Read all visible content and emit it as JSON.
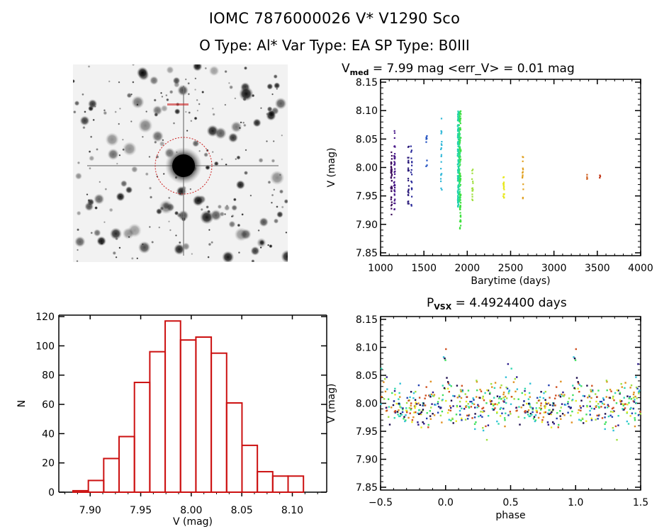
{
  "header": {
    "title": "IOMC 7876000026    V* V1290 Sco",
    "subtitle": "O Type: Al*  Var Type: EA  SP Type: B0III"
  },
  "sky_image": {
    "description": "DSS sky field with target circled in red",
    "marker_color": "#cc2222"
  },
  "chart_data": [
    {
      "type": "scatter",
      "name": "light-curve",
      "title_prefix": "V",
      "title_sub": "med",
      "title_rest": " = 7.99 mag <err_V> = 0.01 mag",
      "xlabel": "Barytime (days)",
      "ylabel": "V (mag)",
      "xlim": [
        1000,
        4000
      ],
      "ylim": [
        8.155,
        7.845
      ],
      "xticks": [
        "1000",
        "1500",
        "2000",
        "2500",
        "3000",
        "3500",
        "4000"
      ],
      "yticks": [
        "7.85",
        "7.90",
        "7.95",
        "8.00",
        "8.05",
        "8.10",
        "8.15"
      ],
      "clusters": [
        {
          "x": 1125,
          "color": "#3a0a5a",
          "ymin": 7.915,
          "ymax": 8.03,
          "n": 40
        },
        {
          "x": 1160,
          "color": "#4a1a8a",
          "ymin": 7.925,
          "ymax": 8.065,
          "n": 40
        },
        {
          "x": 1320,
          "color": "#2a1a7a",
          "ymin": 7.925,
          "ymax": 8.045,
          "n": 25
        },
        {
          "x": 1355,
          "color": "#2a2a9a",
          "ymin": 7.93,
          "ymax": 8.04,
          "n": 18
        },
        {
          "x": 1530,
          "color": "#2050c0",
          "ymin": 7.985,
          "ymax": 8.07,
          "n": 8
        },
        {
          "x": 1700,
          "color": "#30b8d8",
          "ymin": 7.955,
          "ymax": 8.09,
          "n": 20
        },
        {
          "x": 1895,
          "color": "#20d0b0",
          "ymin": 7.93,
          "ymax": 8.1,
          "n": 120
        },
        {
          "x": 1910,
          "color": "#30e080",
          "ymin": 7.94,
          "ymax": 8.1,
          "n": 120
        },
        {
          "x": 1920,
          "color": "#40e040",
          "ymin": 7.89,
          "ymax": 8.1,
          "n": 60
        },
        {
          "x": 2060,
          "color": "#a0e040",
          "ymin": 7.905,
          "ymax": 8.0,
          "n": 15
        },
        {
          "x": 2420,
          "color": "#e8e820",
          "ymin": 7.945,
          "ymax": 7.985,
          "n": 20
        },
        {
          "x": 2640,
          "color": "#e0a020",
          "ymin": 7.945,
          "ymax": 8.025,
          "n": 14
        },
        {
          "x": 3380,
          "color": "#d06020",
          "ymin": 7.975,
          "ymax": 7.99,
          "n": 4
        },
        {
          "x": 3530,
          "color": "#c03010",
          "ymin": 7.98,
          "ymax": 7.988,
          "n": 3
        }
      ]
    },
    {
      "type": "bar",
      "name": "histogram",
      "xlabel": "V (mag)",
      "ylabel": "N",
      "xlim": [
        7.869,
        8.134
      ],
      "ylim": [
        0,
        121
      ],
      "xticks": [
        "7.90",
        "7.95",
        "8.00",
        "8.05",
        "8.10"
      ],
      "yticks": [
        "0",
        "20",
        "40",
        "60",
        "80",
        "100",
        "120"
      ],
      "bin_start": 7.883,
      "bin_width": 0.0152,
      "values": [
        1,
        8,
        23,
        38,
        75,
        96,
        117,
        104,
        106,
        95,
        61,
        32,
        14,
        11,
        11
      ],
      "color": "#cc1111"
    },
    {
      "type": "scatter",
      "name": "phased-curve",
      "title_prefix": "P",
      "title_sub": "VSX",
      "title_rest": " = 4.4924400 days",
      "xlabel": "phase",
      "ylabel": "V (mag)",
      "xlim": [
        -0.5,
        1.5
      ],
      "ylim": [
        8.155,
        7.845
      ],
      "xticks": [
        "−0.5",
        "0.0",
        "0.5",
        "1.0",
        "1.5"
      ],
      "yticks": [
        "7.85",
        "7.90",
        "7.95",
        "8.00",
        "8.05",
        "8.10",
        "8.15"
      ],
      "period_days": 4.49244,
      "baseline_mag": 7.995,
      "eclipse_depth_primary": 0.09,
      "eclipse_depth_secondary": 0.06,
      "scatter_mag": 0.03,
      "palette": [
        "#1a0a4a",
        "#2a1a8a",
        "#2040b0",
        "#30c0d8",
        "#30d8b0",
        "#40e060",
        "#a0e040",
        "#e8e820",
        "#e09020",
        "#d05020"
      ]
    }
  ]
}
